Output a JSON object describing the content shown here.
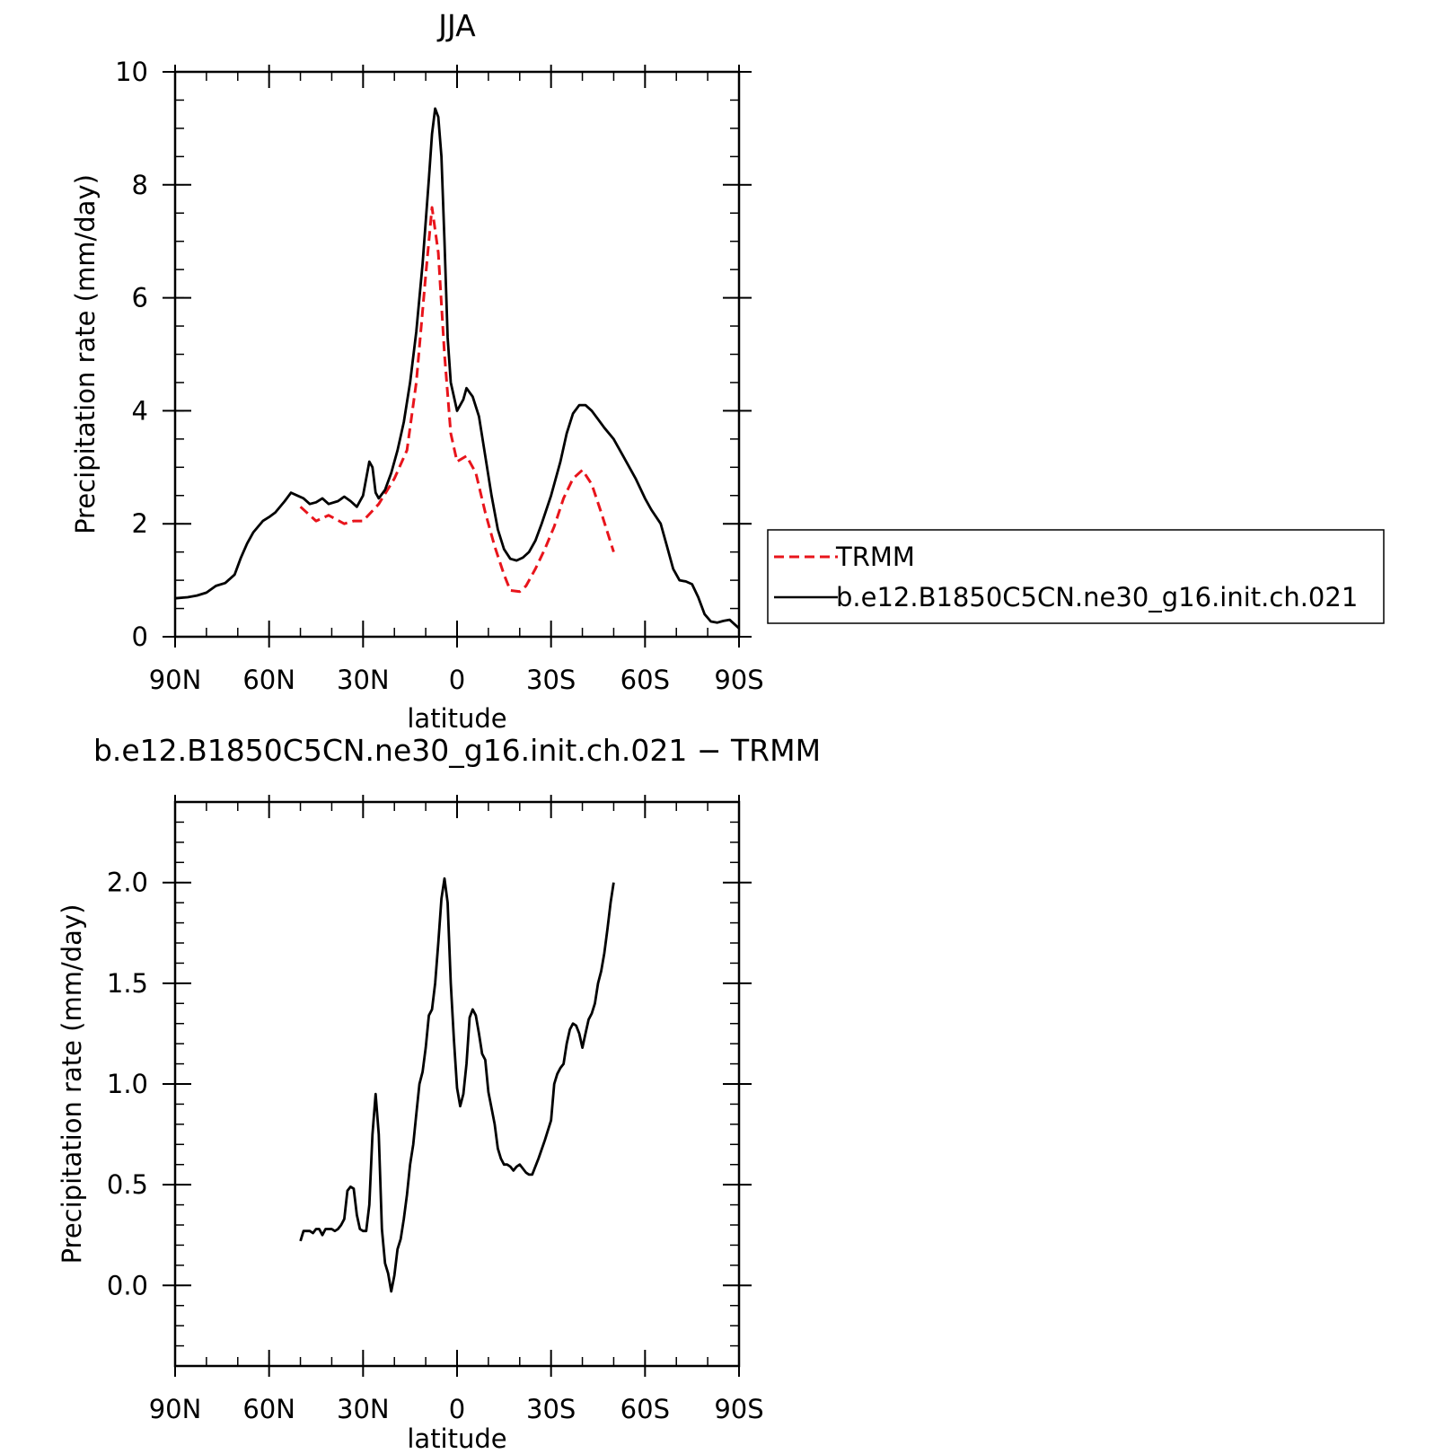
{
  "chart_data": [
    {
      "type": "line",
      "title": "JJA",
      "xlabel": "latitude",
      "ylabel": "Precipitation rate (mm/day)",
      "xlim": [
        90,
        -90
      ],
      "ylim": [
        0,
        10
      ],
      "x_ticks": [
        90,
        60,
        30,
        0,
        -30,
        -60,
        -90
      ],
      "x_tick_labels": [
        "90N",
        "60N",
        "30N",
        "0",
        "30S",
        "60S",
        "90S"
      ],
      "y_ticks": [
        0,
        2,
        4,
        6,
        8,
        10
      ],
      "y_tick_labels": [
        "0",
        "2",
        "4",
        "6",
        "8",
        "10"
      ],
      "legend_position": "right",
      "series": [
        {
          "name": "TRMM",
          "color": "#e8141b",
          "dash": "dashed",
          "points": [
            [
              50,
              2.3
            ],
            [
              45,
              2.05
            ],
            [
              41,
              2.15
            ],
            [
              36,
              2.0
            ],
            [
              33,
              2.05
            ],
            [
              30,
              2.05
            ],
            [
              25,
              2.35
            ],
            [
              20,
              2.8
            ],
            [
              16,
              3.3
            ],
            [
              13,
              4.5
            ],
            [
              10,
              6.4
            ],
            [
              8,
              7.6
            ],
            [
              6,
              6.8
            ],
            [
              4,
              5.0
            ],
            [
              2,
              3.6
            ],
            [
              0,
              3.1
            ],
            [
              -3,
              3.2
            ],
            [
              -6,
              2.9
            ],
            [
              -9,
              2.2
            ],
            [
              -12,
              1.6
            ],
            [
              -15,
              1.1
            ],
            [
              -17,
              0.82
            ],
            [
              -20,
              0.8
            ],
            [
              -22,
              0.9
            ],
            [
              -25,
              1.2
            ],
            [
              -28,
              1.55
            ],
            [
              -31,
              1.95
            ],
            [
              -34,
              2.45
            ],
            [
              -37,
              2.8
            ],
            [
              -40,
              2.95
            ],
            [
              -43,
              2.7
            ],
            [
              -46,
              2.2
            ],
            [
              -50,
              1.5
            ]
          ]
        },
        {
          "name": "b.e12.B1850C5CN.ne30_g16.init.ch.021",
          "color": "#000000",
          "dash": "solid",
          "points": [
            [
              90,
              0.68
            ],
            [
              86,
              0.7
            ],
            [
              83,
              0.73
            ],
            [
              80,
              0.78
            ],
            [
              77,
              0.9
            ],
            [
              74,
              0.95
            ],
            [
              71,
              1.1
            ],
            [
              69,
              1.4
            ],
            [
              67,
              1.65
            ],
            [
              65,
              1.85
            ],
            [
              62,
              2.05
            ],
            [
              60,
              2.12
            ],
            [
              58,
              2.2
            ],
            [
              55,
              2.4
            ],
            [
              53,
              2.55
            ],
            [
              51,
              2.5
            ],
            [
              49,
              2.45
            ],
            [
              47,
              2.35
            ],
            [
              45,
              2.38
            ],
            [
              43,
              2.45
            ],
            [
              41,
              2.35
            ],
            [
              38,
              2.4
            ],
            [
              36,
              2.48
            ],
            [
              34,
              2.4
            ],
            [
              32,
              2.3
            ],
            [
              30,
              2.5
            ],
            [
              28,
              3.1
            ],
            [
              27,
              3.0
            ],
            [
              26,
              2.55
            ],
            [
              25,
              2.45
            ],
            [
              23,
              2.6
            ],
            [
              21,
              2.9
            ],
            [
              19,
              3.3
            ],
            [
              17,
              3.8
            ],
            [
              15,
              4.5
            ],
            [
              13,
              5.4
            ],
            [
              11,
              6.6
            ],
            [
              9,
              8.1
            ],
            [
              8,
              8.9
            ],
            [
              7,
              9.35
            ],
            [
              6,
              9.2
            ],
            [
              5,
              8.5
            ],
            [
              4,
              7.0
            ],
            [
              3,
              5.3
            ],
            [
              2,
              4.5
            ],
            [
              0,
              4.0
            ],
            [
              -2,
              4.2
            ],
            [
              -3,
              4.4
            ],
            [
              -5,
              4.25
            ],
            [
              -7,
              3.9
            ],
            [
              -9,
              3.2
            ],
            [
              -11,
              2.5
            ],
            [
              -13,
              1.9
            ],
            [
              -15,
              1.55
            ],
            [
              -17,
              1.38
            ],
            [
              -19,
              1.35
            ],
            [
              -21,
              1.4
            ],
            [
              -23,
              1.5
            ],
            [
              -25,
              1.7
            ],
            [
              -27,
              2.0
            ],
            [
              -30,
              2.5
            ],
            [
              -33,
              3.1
            ],
            [
              -35,
              3.6
            ],
            [
              -37,
              3.95
            ],
            [
              -39,
              4.1
            ],
            [
              -41,
              4.1
            ],
            [
              -43,
              4.0
            ],
            [
              -45,
              3.85
            ],
            [
              -47,
              3.7
            ],
            [
              -50,
              3.5
            ],
            [
              -53,
              3.2
            ],
            [
              -57,
              2.8
            ],
            [
              -60,
              2.45
            ],
            [
              -62,
              2.25
            ],
            [
              -65,
              2.0
            ],
            [
              -67,
              1.6
            ],
            [
              -69,
              1.2
            ],
            [
              -71,
              1.0
            ],
            [
              -73,
              0.98
            ],
            [
              -75,
              0.93
            ],
            [
              -77,
              0.7
            ],
            [
              -79,
              0.4
            ],
            [
              -81,
              0.27
            ],
            [
              -83,
              0.25
            ],
            [
              -85,
              0.28
            ],
            [
              -87,
              0.3
            ],
            [
              -89,
              0.2
            ],
            [
              -90,
              0.15
            ]
          ]
        }
      ]
    },
    {
      "type": "line",
      "title": "b.e12.B1850C5CN.ne30_g16.init.ch.021 − TRMM",
      "xlabel": "latitude",
      "ylabel": "Precipitation rate (mm/day)",
      "xlim": [
        90,
        -90
      ],
      "ylim": [
        -0.4,
        2.4
      ],
      "x_ticks": [
        90,
        60,
        30,
        0,
        -30,
        -60,
        -90
      ],
      "x_tick_labels": [
        "90N",
        "60N",
        "30N",
        "0",
        "30S",
        "60S",
        "90S"
      ],
      "y_ticks": [
        0.0,
        0.5,
        1.0,
        1.5,
        2.0
      ],
      "y_tick_labels": [
        "0.0",
        "0.5",
        "1.0",
        "1.5",
        "2.0"
      ],
      "series": [
        {
          "color": "#000000",
          "dash": "solid",
          "points": [
            [
              50,
              0.22
            ],
            [
              49,
              0.27
            ],
            [
              47,
              0.27
            ],
            [
              46,
              0.26
            ],
            [
              45,
              0.28
            ],
            [
              44,
              0.28
            ],
            [
              43,
              0.25
            ],
            [
              42,
              0.28
            ],
            [
              41,
              0.28
            ],
            [
              40,
              0.28
            ],
            [
              39,
              0.27
            ],
            [
              38,
              0.28
            ],
            [
              37,
              0.3
            ],
            [
              36,
              0.33
            ],
            [
              35,
              0.47
            ],
            [
              34,
              0.49
            ],
            [
              33,
              0.48
            ],
            [
              32,
              0.35
            ],
            [
              31,
              0.28
            ],
            [
              30,
              0.27
            ],
            [
              29,
              0.27
            ],
            [
              28,
              0.4
            ],
            [
              27,
              0.75
            ],
            [
              26,
              0.95
            ],
            [
              25,
              0.75
            ],
            [
              24,
              0.28
            ],
            [
              23,
              0.11
            ],
            [
              22,
              0.06
            ],
            [
              21,
              -0.03
            ],
            [
              20,
              0.05
            ],
            [
              19,
              0.18
            ],
            [
              18,
              0.23
            ],
            [
              17,
              0.33
            ],
            [
              16,
              0.45
            ],
            [
              15,
              0.6
            ],
            [
              14,
              0.7
            ],
            [
              13,
              0.85
            ],
            [
              12,
              1.0
            ],
            [
              11,
              1.06
            ],
            [
              10,
              1.18
            ],
            [
              9,
              1.34
            ],
            [
              8,
              1.37
            ],
            [
              7,
              1.5
            ],
            [
              6,
              1.7
            ],
            [
              5,
              1.92
            ],
            [
              4,
              2.02
            ],
            [
              3,
              1.9
            ],
            [
              2,
              1.5
            ],
            [
              1,
              1.22
            ],
            [
              0,
              0.98
            ],
            [
              -1,
              0.89
            ],
            [
              -2,
              0.95
            ],
            [
              -3,
              1.1
            ],
            [
              -4,
              1.33
            ],
            [
              -5,
              1.37
            ],
            [
              -6,
              1.34
            ],
            [
              -7,
              1.25
            ],
            [
              -8,
              1.15
            ],
            [
              -9,
              1.12
            ],
            [
              -10,
              0.96
            ],
            [
              -11,
              0.88
            ],
            [
              -12,
              0.8
            ],
            [
              -13,
              0.68
            ],
            [
              -14,
              0.63
            ],
            [
              -15,
              0.6
            ],
            [
              -16,
              0.6
            ],
            [
              -17,
              0.59
            ],
            [
              -18,
              0.57
            ],
            [
              -19,
              0.59
            ],
            [
              -20,
              0.6
            ],
            [
              -21,
              0.58
            ],
            [
              -22,
              0.56
            ],
            [
              -23,
              0.55
            ],
            [
              -24,
              0.55
            ],
            [
              -26,
              0.63
            ],
            [
              -28,
              0.72
            ],
            [
              -30,
              0.82
            ],
            [
              -31,
              1.0
            ],
            [
              -32,
              1.05
            ],
            [
              -33,
              1.08
            ],
            [
              -34,
              1.1
            ],
            [
              -35,
              1.2
            ],
            [
              -36,
              1.27
            ],
            [
              -37,
              1.3
            ],
            [
              -38,
              1.29
            ],
            [
              -39,
              1.25
            ],
            [
              -40,
              1.18
            ],
            [
              -41,
              1.25
            ],
            [
              -42,
              1.32
            ],
            [
              -43,
              1.35
            ],
            [
              -44,
              1.4
            ],
            [
              -45,
              1.5
            ],
            [
              -46,
              1.56
            ],
            [
              -47,
              1.65
            ],
            [
              -48,
              1.77
            ],
            [
              -49,
              1.9
            ],
            [
              -50,
              2.0
            ]
          ]
        }
      ]
    }
  ]
}
